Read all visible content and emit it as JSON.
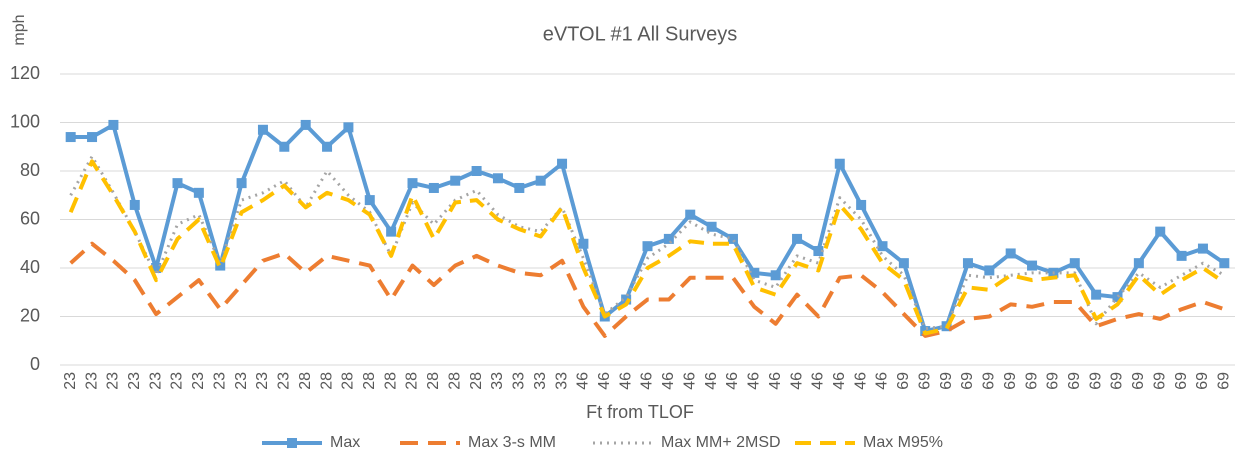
{
  "chart_data": {
    "type": "line",
    "title": "eVTOL #1 All Surveys",
    "y_label": "mph",
    "x_label": "Ft from TLOF",
    "categories": [
      "23",
      "23",
      "23",
      "23",
      "23",
      "23",
      "23",
      "23",
      "23",
      "23",
      "23",
      "28",
      "28",
      "28",
      "28",
      "28",
      "28",
      "28",
      "28",
      "28",
      "33",
      "33",
      "33",
      "33",
      "46",
      "46",
      "46",
      "46",
      "46",
      "46",
      "46",
      "46",
      "46",
      "46",
      "46",
      "46",
      "46",
      "46",
      "46",
      "69",
      "69",
      "69",
      "69",
      "69",
      "69",
      "69",
      "69",
      "69",
      "69",
      "69",
      "69",
      "69",
      "69",
      "69",
      "69"
    ],
    "series": [
      {
        "name": "Max",
        "color": "#5b9bd5",
        "values": [
          94,
          94,
          99,
          66,
          40,
          75,
          71,
          41,
          75,
          97,
          90,
          99,
          90,
          98,
          68,
          55,
          75,
          73,
          76,
          80,
          77,
          73,
          76,
          83,
          50,
          20,
          27,
          49,
          52,
          62,
          57,
          52,
          38,
          37,
          52,
          47,
          83,
          66,
          49,
          42,
          14,
          16,
          42,
          39,
          46,
          41,
          38,
          42,
          29,
          28,
          42,
          55,
          45,
          48,
          42
        ]
      },
      {
        "name": "Max 3-s MM",
        "color": "#ed7d31",
        "values": [
          42,
          50,
          43,
          35,
          21,
          28,
          35,
          23,
          33,
          43,
          46,
          38,
          45,
          43,
          41,
          27,
          41,
          33,
          41,
          45,
          41,
          38,
          37,
          43,
          24,
          12,
          20,
          27,
          27,
          36,
          36,
          36,
          24,
          17,
          29,
          20,
          36,
          37,
          30,
          21,
          12,
          14,
          19,
          20,
          25,
          24,
          26,
          26,
          16,
          19,
          21,
          19,
          23,
          26,
          23
        ]
      },
      {
        "name": "Max MM+ 2MSD",
        "color": "#a5a5a5",
        "values": [
          70,
          86,
          71,
          55,
          37,
          58,
          62,
          42,
          68,
          71,
          76,
          65,
          80,
          70,
          63,
          45,
          67,
          58,
          68,
          72,
          62,
          57,
          55,
          65,
          44,
          21,
          28,
          44,
          50,
          59,
          54,
          52,
          35,
          32,
          45,
          42,
          69,
          60,
          45,
          37,
          15,
          16,
          37,
          36,
          37,
          38,
          38,
          38,
          17,
          28,
          38,
          32,
          37,
          42,
          37
        ]
      },
      {
        "name": "Max M95%",
        "color": "#ffc000",
        "values": [
          63,
          84,
          70,
          55,
          35,
          52,
          60,
          40,
          63,
          68,
          74,
          65,
          71,
          68,
          62,
          45,
          70,
          52,
          67,
          68,
          60,
          56,
          53,
          65,
          40,
          20,
          25,
          40,
          45,
          51,
          50,
          50,
          32,
          29,
          42,
          39,
          66,
          56,
          42,
          35,
          13,
          15,
          32,
          31,
          37,
          35,
          36,
          37,
          19,
          25,
          37,
          29,
          35,
          40,
          34
        ]
      }
    ],
    "ylim": [
      0,
      120
    ],
    "yticks": [
      0,
      20,
      40,
      60,
      80,
      100,
      120
    ],
    "grid": true
  }
}
